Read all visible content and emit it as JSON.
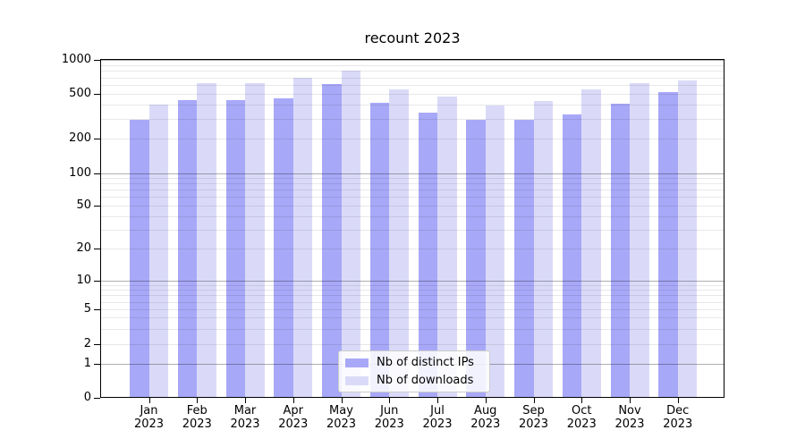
{
  "title": "recount 2023",
  "chart_data": {
    "type": "bar",
    "title": "recount 2023",
    "categories": [
      "Jan 2023",
      "Feb 2023",
      "Mar 2023",
      "Apr 2023",
      "May 2023",
      "Jun 2023",
      "Jul 2023",
      "Aug 2023",
      "Sep 2023",
      "Oct 2023",
      "Nov 2023",
      "Dec 2023"
    ],
    "series": [
      {
        "name": "Nb of distinct IPs",
        "color": "#a8a8f8",
        "values": [
          295,
          440,
          440,
          460,
          610,
          420,
          340,
          295,
          295,
          330,
          410,
          520
        ]
      },
      {
        "name": "Nb of downloads",
        "color": "#dadaf8",
        "values": [
          400,
          620,
          620,
          700,
          810,
          550,
          470,
          395,
          430,
          550,
          620,
          660
        ]
      }
    ],
    "yscale": "symlog",
    "yticks": [
      0,
      1,
      2,
      5,
      10,
      20,
      50,
      100,
      200,
      500,
      1000
    ],
    "ylim": [
      0,
      1000
    ],
    "xlabel": "",
    "ylabel": "",
    "grid": true,
    "legend_position": "lower center"
  }
}
